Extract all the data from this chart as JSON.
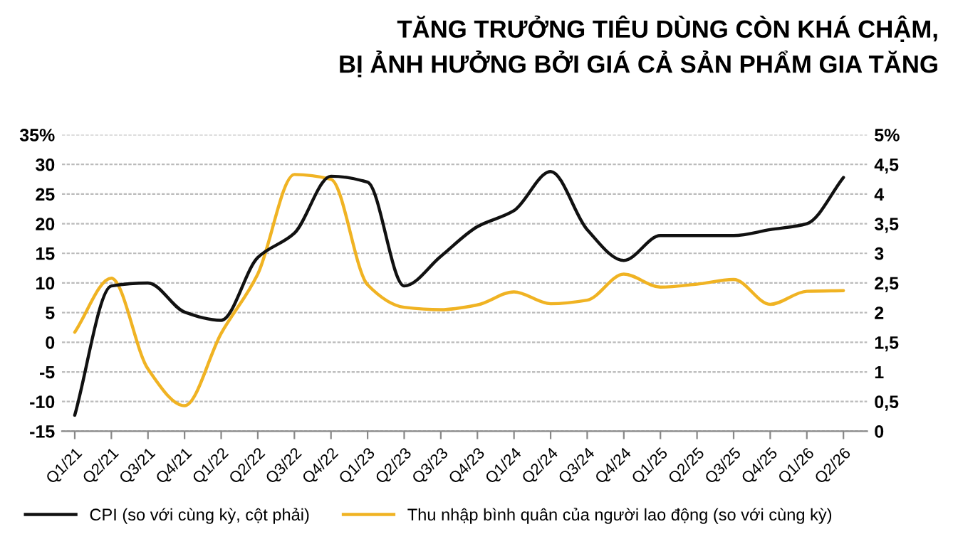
{
  "chart_data": {
    "type": "line",
    "title": "TĂNG TRƯỞNG TIÊU DÙNG CÒN KHÁ CHẬM,\nBỊ ẢNH HƯỞNG BỞI GIÁ CẢ SẢN PHẨM GIA TĂNG",
    "categories": [
      "Q1/21",
      "Q2/21",
      "Q3/21",
      "Q4/21",
      "Q1/22",
      "Q2/22",
      "Q3/22",
      "Q4/22",
      "Q1/23",
      "Q2/23",
      "Q3/23",
      "Q4/23",
      "Q1/24",
      "Q2/24",
      "Q3/24",
      "Q4/24",
      "Q1/25",
      "Q2/25",
      "Q3/25",
      "Q4/25",
      "Q1/26",
      "Q2/26"
    ],
    "ylim": [
      -15,
      35
    ],
    "yticks": [
      -15,
      -10,
      -5,
      0,
      5,
      10,
      15,
      20,
      25,
      30,
      {
        "value": 35,
        "label": "35%"
      }
    ],
    "y2lim": [
      0,
      5
    ],
    "y2ticks": [
      0,
      {
        "value": 0.5,
        "label": "0,5"
      },
      1,
      {
        "value": 1.5,
        "label": "1,5"
      },
      2,
      {
        "value": 2.5,
        "label": "2,5"
      },
      3,
      {
        "value": 3.5,
        "label": "3,5"
      },
      4,
      {
        "value": 4.5,
        "label": "4,5"
      },
      {
        "value": 5,
        "label": "5%"
      }
    ],
    "grid": "y",
    "legend": "bottom",
    "marker": "none",
    "line_style": "solid",
    "series": [
      {
        "name": "CPI (so với cùng kỳ, cột phải)",
        "color": "#111111",
        "axis": "y2",
        "values": [
          0.27,
          2.45,
          2.5,
          2.01,
          1.87,
          2.93,
          3.34,
          4.3,
          4.2,
          2.45,
          2.95,
          3.45,
          3.72,
          4.38,
          3.4,
          2.88,
          3.3,
          3.3,
          3.3,
          3.4,
          3.5,
          4.28
        ]
      },
      {
        "name": "Thu nhập bình quân của người lao động (so với cùng kỳ)",
        "color": "#f0b323",
        "axis": "y",
        "values": [
          1.7,
          10.8,
          -4.5,
          -10.7,
          1.5,
          11.5,
          28.3,
          27.5,
          9.7,
          5.9,
          5.5,
          6.3,
          8.5,
          6.5,
          7.1,
          11.5,
          9.3,
          9.8,
          10.6,
          6.4,
          8.6,
          8.7
        ]
      }
    ]
  }
}
